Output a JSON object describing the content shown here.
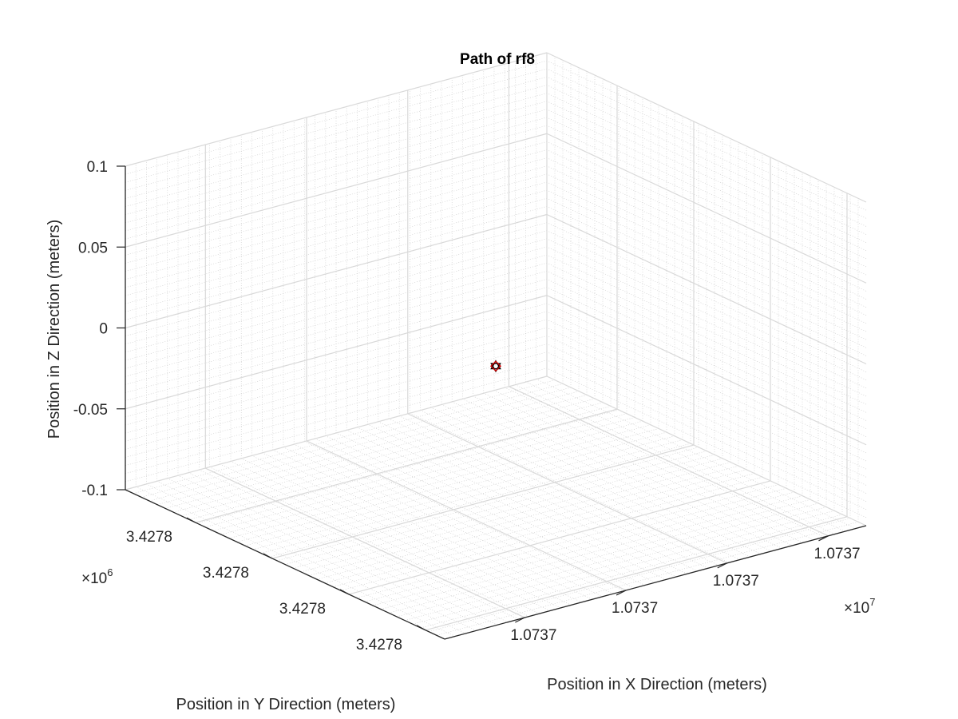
{
  "chart_data": {
    "type": "scatter",
    "dimensions": 3,
    "title": "Path of rf8",
    "xlabel": "Position in X Direction (meters)",
    "ylabel": "Position in Y Direction (meters)",
    "zlabel": "Position in Z Direction (meters)",
    "xticks": [
      "1.0737",
      "1.0737",
      "1.0737",
      "1.0737"
    ],
    "yticks": [
      "3.4278",
      "3.4278",
      "3.4278",
      "3.4278"
    ],
    "zticks": [
      "-0.1",
      "-0.05",
      "0",
      "0.05",
      "0.1"
    ],
    "x_exponent": {
      "base": "×10",
      "power": "7"
    },
    "y_exponent": {
      "base": "×10",
      "power": "6"
    },
    "zlim": [
      -0.1,
      0.1
    ],
    "grid": true,
    "minor_grid": true,
    "points": [
      {
        "z": -0.0125,
        "marker": "hexagram",
        "color": "#000000"
      },
      {
        "z": -0.0125,
        "marker": "diamond",
        "color": "#cc0000"
      }
    ]
  }
}
